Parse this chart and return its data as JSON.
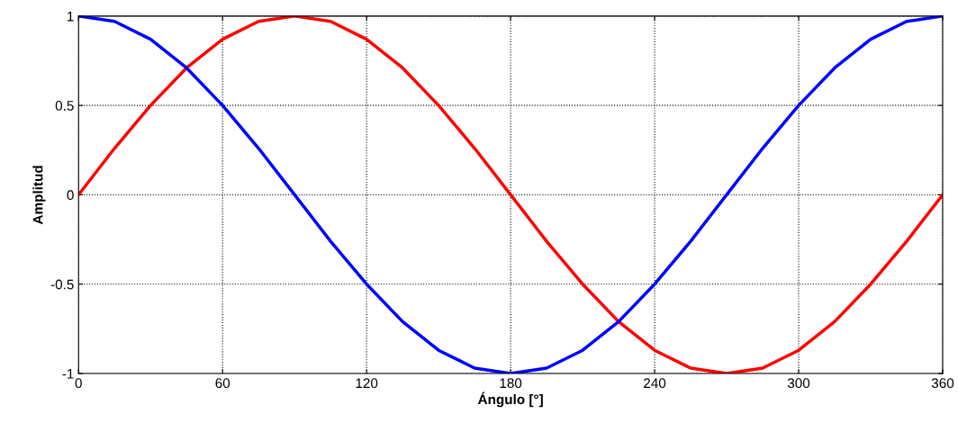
{
  "chart_data": {
    "type": "line",
    "xlabel": "Ángulo [°]",
    "ylabel": "Amplitud",
    "x": [
      0,
      15,
      30,
      45,
      60,
      75,
      90,
      105,
      120,
      135,
      150,
      165,
      180,
      195,
      210,
      225,
      240,
      255,
      270,
      285,
      300,
      315,
      330,
      345,
      360
    ],
    "series": [
      {
        "color": "#ff0000",
        "values": [
          0,
          0.26,
          0.5,
          0.71,
          0.87,
          0.97,
          1,
          0.97,
          0.87,
          0.71,
          0.5,
          0.26,
          0,
          -0.26,
          -0.5,
          -0.71,
          -0.87,
          -0.97,
          -1,
          -0.97,
          -0.87,
          -0.71,
          -0.5,
          -0.26,
          0
        ]
      },
      {
        "color": "#0000ff",
        "values": [
          1,
          0.97,
          0.87,
          0.71,
          0.5,
          0.26,
          0,
          -0.26,
          -0.5,
          -0.71,
          -0.87,
          -0.97,
          -1,
          -0.97,
          -0.87,
          -0.71,
          -0.5,
          -0.26,
          0,
          0.26,
          0.5,
          0.71,
          0.87,
          0.97,
          1
        ]
      }
    ],
    "xlim": [
      0,
      360
    ],
    "xticks": [
      0,
      60,
      120,
      180,
      240,
      300,
      360
    ],
    "ylim": [
      -1,
      1
    ],
    "yticks": [
      -1,
      -0.5,
      0,
      0.5,
      1
    ],
    "grid": true,
    "line_style": "solid",
    "legend": false
  }
}
